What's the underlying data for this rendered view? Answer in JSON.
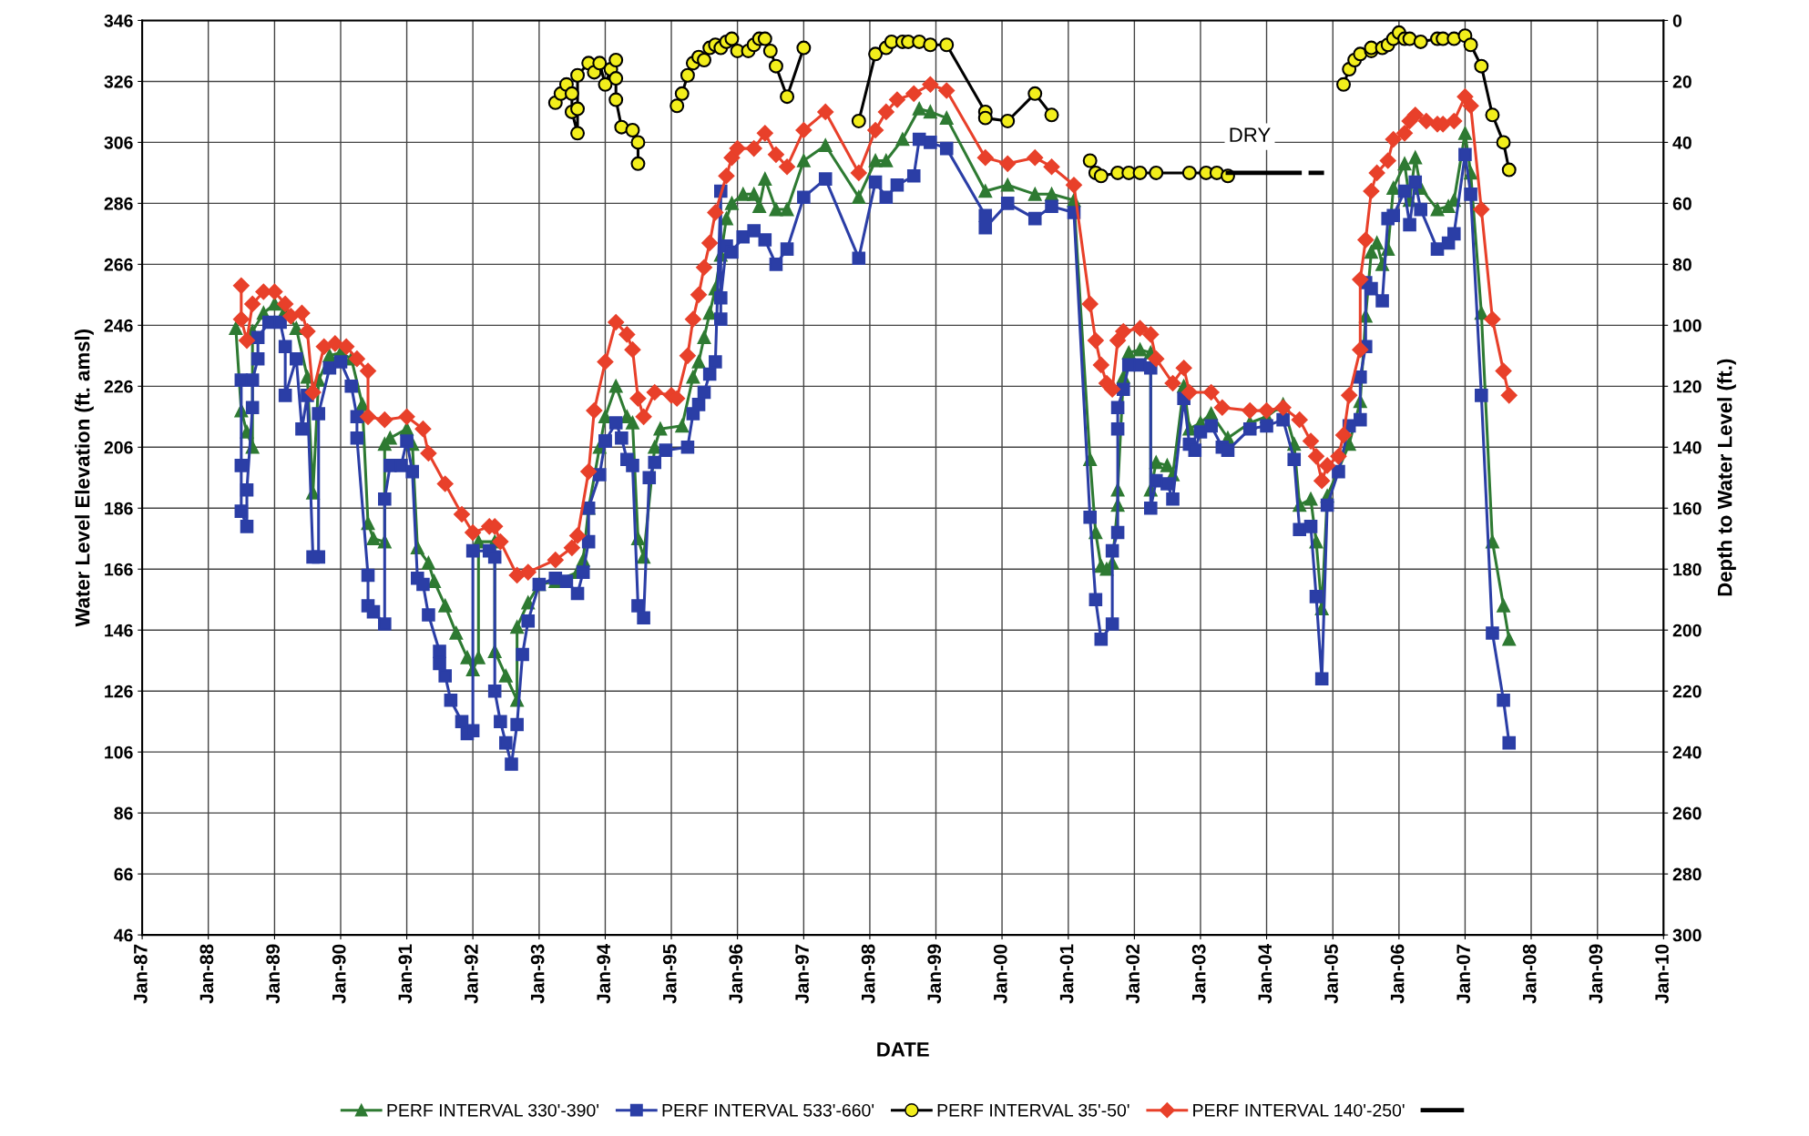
{
  "chart_data": {
    "type": "line",
    "xlabel": "DATE",
    "ylabel": "Water Level Elevation (ft. amsl)",
    "y2label": "Depth to Water Level (ft.)",
    "xlim": [
      "1987-01",
      "2010-01"
    ],
    "xticks": [
      {
        "value": "1987-01",
        "label": "Jan-87"
      },
      {
        "value": "1988-01",
        "label": "Jan-88"
      },
      {
        "value": "1989-01",
        "label": "Jan-89"
      },
      {
        "value": "1990-01",
        "label": "Jan-90"
      },
      {
        "value": "1991-01",
        "label": "Jan-91"
      },
      {
        "value": "1992-01",
        "label": "Jan-92"
      },
      {
        "value": "1993-01",
        "label": "Jan-93"
      },
      {
        "value": "1994-01",
        "label": "Jan-94"
      },
      {
        "value": "1995-01",
        "label": "Jan-95"
      },
      {
        "value": "1996-01",
        "label": "Jan-96"
      },
      {
        "value": "1997-01",
        "label": "Jan-97"
      },
      {
        "value": "1998-01",
        "label": "Jan-98"
      },
      {
        "value": "1999-01",
        "label": "Jan-99"
      },
      {
        "value": "2000-01",
        "label": "Jan-00"
      },
      {
        "value": "2001-01",
        "label": "Jan-01"
      },
      {
        "value": "2002-01",
        "label": "Jan-02"
      },
      {
        "value": "2003-01",
        "label": "Jan-03"
      },
      {
        "value": "2004-01",
        "label": "Jan-04"
      },
      {
        "value": "2005-01",
        "label": "Jan-05"
      },
      {
        "value": "2006-01",
        "label": "Jan-06"
      },
      {
        "value": "2007-01",
        "label": "Jan-07"
      },
      {
        "value": "2008-01",
        "label": "Jan-08"
      },
      {
        "value": "2009-01",
        "label": "Jan-09"
      },
      {
        "value": "2010-01",
        "label": "Jan-10"
      }
    ],
    "ylim": [
      46,
      346
    ],
    "yticks": [
      46,
      66,
      86,
      106,
      126,
      146,
      166,
      186,
      206,
      226,
      246,
      266,
      286,
      306,
      326,
      346
    ],
    "y2lim": [
      300,
      0
    ],
    "y2ticks": [
      0,
      20,
      40,
      60,
      80,
      100,
      120,
      140,
      160,
      180,
      200,
      220,
      240,
      260,
      280,
      300
    ],
    "grid": true,
    "legend": "bottom",
    "line_style": "solid",
    "annotations": [
      "DRY"
    ],
    "series": [
      {
        "name": "PERF INTERVAL 330'-390'",
        "color": "#2e7a32",
        "marker": "triangle",
        "x": [
          "1988-06",
          "1988-07",
          "1988-08",
          "1988-09",
          "1988-09",
          "1988-11",
          "1989-01",
          "1989-03",
          "1989-05",
          "1989-07",
          "1989-08",
          "1989-09",
          "1989-11",
          "1990-01",
          "1990-03",
          "1990-05",
          "1990-06",
          "1990-07",
          "1990-09",
          "1990-09",
          "1990-10",
          "1991-01",
          "1991-02",
          "1991-03",
          "1991-05",
          "1991-06",
          "1991-08",
          "1991-10",
          "1991-12",
          "1992-01",
          "1992-02",
          "1992-02",
          "1992-05",
          "1992-05",
          "1992-07",
          "1992-09",
          "1992-09",
          "1992-11",
          "1993-01",
          "1993-04",
          "1993-08",
          "1993-09",
          "1993-10",
          "1993-12",
          "1994-01",
          "1994-03",
          "1994-05",
          "1994-06",
          "1994-07",
          "1994-08",
          "1994-10",
          "1994-11",
          "1995-03",
          "1995-05",
          "1995-06",
          "1995-07",
          "1995-08",
          "1995-09",
          "1995-10",
          "1995-11",
          "1995-12",
          "1996-02",
          "1996-04",
          "1996-05",
          "1996-06",
          "1996-08",
          "1996-10",
          "1997-01",
          "1997-05",
          "1997-11",
          "1998-02",
          "1998-04",
          "1998-07",
          "1998-10",
          "1998-12",
          "1999-03",
          "1999-10",
          "2000-02",
          "2000-07",
          "2000-10",
          "2001-02",
          "2001-05",
          "2001-06",
          "2001-07",
          "2001-08",
          "2001-09",
          "2001-10",
          "2001-10",
          "2001-11",
          "2001-12",
          "2002-02",
          "2002-04",
          "2002-04",
          "2002-05",
          "2002-07",
          "2002-08",
          "2002-10",
          "2002-11",
          "2003-01",
          "2003-03",
          "2003-06",
          "2003-10",
          "2004-01",
          "2004-04",
          "2004-06",
          "2004-07",
          "2004-09",
          "2004-10",
          "2004-11",
          "2004-12",
          "2005-04",
          "2005-06",
          "2005-07",
          "2005-08",
          "2005-09",
          "2005-10",
          "2005-11",
          "2005-12",
          "2006-02",
          "2006-03",
          "2006-04",
          "2006-05",
          "2006-08",
          "2006-10",
          "2006-11",
          "2007-01",
          "2007-02",
          "2007-04",
          "2007-06",
          "2007-08",
          "2007-09"
        ],
        "values": [
          245,
          218,
          211,
          206,
          244,
          250,
          253,
          251,
          245,
          229,
          191,
          228,
          236,
          237,
          235,
          220,
          181,
          176,
          175,
          207,
          209,
          212,
          207,
          173,
          168,
          162,
          154,
          145,
          137,
          133,
          137,
          175,
          175,
          139,
          131,
          123,
          147,
          155,
          161,
          162,
          165,
          169,
          186,
          206,
          216,
          226,
          216,
          214,
          176,
          170,
          206,
          212,
          213,
          229,
          234,
          242,
          250,
          258,
          269,
          281,
          286,
          289,
          289,
          285,
          294,
          284,
          284,
          300,
          305,
          288,
          300,
          300,
          307,
          317,
          316,
          314,
          290,
          292,
          289,
          289,
          287,
          202,
          178,
          167,
          166,
          168,
          187,
          192,
          229,
          237,
          238,
          237,
          192,
          201,
          200,
          197,
          226,
          212,
          214,
          217,
          209,
          214,
          216,
          220,
          207,
          187,
          189,
          175,
          153,
          190,
          207,
          221,
          249,
          270,
          273,
          266,
          271,
          291,
          299,
          287,
          301,
          291,
          284,
          285,
          287,
          309,
          296,
          250,
          175,
          154,
          143
        ]
      },
      {
        "name": "PERF INTERVAL 533'-660'",
        "color": "#2b3ea6",
        "marker": "square",
        "x": [
          "1988-07",
          "1988-07",
          "1988-07",
          "1988-08",
          "1988-08",
          "1988-09",
          "1988-09",
          "1988-10",
          "1988-10",
          "1988-12",
          "1989-02",
          "1989-03",
          "1989-03",
          "1989-05",
          "1989-06",
          "1989-07",
          "1989-08",
          "1989-09",
          "1989-09",
          "1989-11",
          "1990-01",
          "1990-03",
          "1990-04",
          "1990-04",
          "1990-06",
          "1990-06",
          "1990-07",
          "1990-09",
          "1990-09",
          "1990-10",
          "1990-12",
          "1991-01",
          "1991-02",
          "1991-03",
          "1991-04",
          "1991-05",
          "1991-07",
          "1991-07",
          "1991-08",
          "1991-09",
          "1991-11",
          "1991-12",
          "1992-01",
          "1992-01",
          "1992-04",
          "1992-05",
          "1992-05",
          "1992-06",
          "1992-07",
          "1992-08",
          "1992-09",
          "1992-10",
          "1992-11",
          "1993-01",
          "1993-04",
          "1993-06",
          "1993-08",
          "1993-09",
          "1993-10",
          "1993-10",
          "1993-12",
          "1994-01",
          "1994-01",
          "1994-03",
          "1994-04",
          "1994-05",
          "1994-06",
          "1994-07",
          "1994-08",
          "1994-09",
          "1994-10",
          "1994-12",
          "1995-04",
          "1995-05",
          "1995-06",
          "1995-07",
          "1995-08",
          "1995-09",
          "1995-10",
          "1995-10",
          "1995-10",
          "1995-11",
          "1995-12",
          "1996-02",
          "1996-04",
          "1996-06",
          "1996-08",
          "1996-10",
          "1997-01",
          "1997-05",
          "1997-11",
          "1998-02",
          "1998-04",
          "1998-06",
          "1998-09",
          "1998-10",
          "1998-12",
          "1999-03",
          "1999-10",
          "1999-10",
          "2000-02",
          "2000-07",
          "2000-10",
          "2001-02",
          "2001-05",
          "2001-06",
          "2001-07",
          "2001-09",
          "2001-09",
          "2001-10",
          "2001-10",
          "2001-10",
          "2001-11",
          "2001-12",
          "2002-02",
          "2002-04",
          "2002-04",
          "2002-05",
          "2002-07",
          "2002-08",
          "2002-10",
          "2002-11",
          "2002-12",
          "2003-01",
          "2003-03",
          "2003-05",
          "2003-06",
          "2003-10",
          "2004-01",
          "2004-04",
          "2004-06",
          "2004-07",
          "2004-09",
          "2004-10",
          "2004-11",
          "2004-12",
          "2005-02",
          "2005-04",
          "2005-06",
          "2005-06",
          "2005-07",
          "2005-07",
          "2005-08",
          "2005-10",
          "2005-11",
          "2005-12",
          "2006-02",
          "2006-03",
          "2006-04",
          "2006-05",
          "2006-08",
          "2006-10",
          "2006-11",
          "2007-01",
          "2007-02",
          "2007-04",
          "2007-06",
          "2007-08",
          "2007-09"
        ],
        "values": [
          228,
          200,
          185,
          180,
          192,
          219,
          228,
          235,
          242,
          247,
          247,
          239,
          223,
          235,
          212,
          223,
          170,
          170,
          217,
          232,
          234,
          226,
          216,
          209,
          164,
          154,
          152,
          148,
          189,
          200,
          200,
          208,
          198,
          163,
          161,
          151,
          139,
          135,
          131,
          123,
          116,
          112,
          113,
          172,
          172,
          170,
          126,
          116,
          109,
          102,
          115,
          138,
          149,
          161,
          163,
          162,
          158,
          165,
          175,
          186,
          197,
          208,
          208,
          214,
          209,
          202,
          200,
          154,
          150,
          196,
          201,
          205,
          206,
          217,
          220,
          224,
          230,
          234,
          290,
          248,
          255,
          272,
          270,
          275,
          277,
          274,
          266,
          271,
          288,
          294,
          268,
          293,
          288,
          292,
          295,
          307,
          306,
          304,
          282,
          278,
          286,
          281,
          285,
          283,
          183,
          156,
          143,
          148,
          172,
          178,
          212,
          219,
          225,
          233,
          233,
          232,
          186,
          195,
          194,
          189,
          222,
          207,
          205,
          211,
          213,
          206,
          205,
          212,
          213,
          215,
          202,
          179,
          180,
          157,
          130,
          187,
          198,
          213,
          215,
          229,
          239,
          260,
          258,
          254,
          281,
          282,
          290,
          279,
          293,
          284,
          271,
          273,
          276,
          302,
          289,
          223,
          145,
          123,
          109
        ]
      },
      {
        "name": "PERF INTERVAL 35'-50'",
        "color": "#f2ee1c",
        "marker": "circle",
        "axis": "y2",
        "x": [
          "1993-04",
          "1993-05",
          "1993-06",
          "1993-07",
          "1993-07",
          "1993-08",
          "1993-08",
          "1993-08",
          "1993-10",
          "1993-11",
          "1993-12",
          "1994-01",
          "1994-02",
          "1994-03",
          "1994-03",
          "1994-03",
          "1994-04",
          "1994-06",
          "1994-07",
          "1994-07",
          "1994-11",
          "1995-02",
          "1995-03",
          "1995-04",
          "1995-05",
          "1995-06",
          "1995-07",
          "1995-08",
          "1995-09",
          "1995-10",
          "1995-11",
          "1995-12",
          "1996-01",
          "1996-03",
          "1996-04",
          "1996-05",
          "1996-06",
          "1996-07",
          "1996-08",
          "1996-10",
          "1997-01",
          "1997-06",
          "1997-11",
          "1998-02",
          "1998-04",
          "1998-05",
          "1998-07",
          "1998-08",
          "1998-10",
          "1998-12",
          "1999-03",
          "1999-10",
          "1999-10",
          "2000-02",
          "2000-07",
          "2000-10",
          "2001-01",
          "2001-05",
          "2001-06",
          "2001-07",
          "2001-10",
          "2001-12",
          "2002-02",
          "2002-05",
          "2002-11",
          "2003-02",
          "2003-04",
          "2003-06",
          "2004-05",
          "2005-03",
          "2005-04",
          "2005-05",
          "2005-06",
          "2005-08",
          "2005-08",
          "2005-10",
          "2005-11",
          "2005-12",
          "2006-01",
          "2006-02",
          "2006-03",
          "2006-05",
          "2006-08",
          "2006-09",
          "2006-11",
          "2007-01",
          "2007-02",
          "2007-04",
          "2007-06",
          "2007-08",
          "2007-09"
        ],
        "values": [
          27,
          24,
          21,
          24,
          30,
          37,
          29,
          18,
          14,
          17,
          14,
          21,
          16,
          13,
          19,
          26,
          35,
          36,
          40,
          47,
          null,
          28,
          24,
          18,
          14,
          12,
          13,
          9,
          8,
          9,
          7,
          6,
          10,
          10,
          8,
          6,
          6,
          10,
          15,
          25,
          9,
          null,
          33,
          11,
          9,
          7,
          7,
          7,
          7,
          8,
          8,
          30,
          32,
          33,
          24,
          31,
          null,
          46,
          50,
          51,
          50,
          50,
          50,
          50,
          50,
          50,
          50,
          51,
          null,
          21,
          16,
          13,
          11,
          10,
          9,
          9,
          8,
          6,
          4,
          6,
          6,
          7,
          6,
          6,
          6,
          5,
          8,
          15,
          31,
          40,
          49
        ]
      },
      {
        "name": "PERF INTERVAL 140'-250'",
        "color": "#e8402a",
        "marker": "diamond",
        "x": [
          "1988-07",
          "1988-07",
          "1988-08",
          "1988-09",
          "1988-11",
          "1989-01",
          "1989-03",
          "1989-04",
          "1989-06",
          "1989-07",
          "1989-08",
          "1989-10",
          "1989-12",
          "1990-02",
          "1990-04",
          "1990-06",
          "1990-06",
          "1990-09",
          "1991-01",
          "1991-04",
          "1991-05",
          "1991-08",
          "1991-11",
          "1992-01",
          "1992-04",
          "1992-05",
          "1992-06",
          "1992-09",
          "1992-11",
          "1993-04",
          "1993-07",
          "1993-08",
          "1993-10",
          "1993-11",
          "1994-01",
          "1994-03",
          "1994-05",
          "1994-06",
          "1994-07",
          "1994-08",
          "1994-10",
          "1995-01",
          "1995-02",
          "1995-04",
          "1995-05",
          "1995-06",
          "1995-07",
          "1995-08",
          "1995-09",
          "1995-11",
          "1995-12",
          "1996-01",
          "1996-04",
          "1996-06",
          "1996-08",
          "1996-10",
          "1997-01",
          "1997-05",
          "1997-11",
          "1998-02",
          "1998-04",
          "1998-06",
          "1998-09",
          "1998-12",
          "1999-03",
          "1999-10",
          "2000-02",
          "2000-07",
          "2000-10",
          "2001-02",
          "2001-05",
          "2001-06",
          "2001-07",
          "2001-08",
          "2001-09",
          "2001-10",
          "2001-11",
          "2002-02",
          "2002-04",
          "2002-05",
          "2002-08",
          "2002-10",
          "2002-11",
          "2003-03",
          "2003-05",
          "2003-10",
          "2004-01",
          "2004-04",
          "2004-07",
          "2004-09",
          "2004-10",
          "2004-11",
          "2004-12",
          "2005-02",
          "2005-03",
          "2005-04",
          "2005-06",
          "2005-06",
          "2005-07",
          "2005-08",
          "2005-09",
          "2005-11",
          "2005-12",
          "2006-02",
          "2006-03",
          "2006-04",
          "2006-06",
          "2006-08",
          "2006-09",
          "2006-11",
          "2007-01",
          "2007-02",
          "2007-04",
          "2007-06",
          "2007-08",
          "2007-09"
        ],
        "values": [
          259,
          248,
          241,
          253,
          257,
          257,
          253,
          249,
          250,
          244,
          224,
          239,
          240,
          239,
          235,
          231,
          216,
          215,
          216,
          212,
          204,
          194,
          184,
          178,
          180,
          180,
          175,
          164,
          165,
          169,
          173,
          177,
          198,
          218,
          234,
          247,
          243,
          238,
          222,
          216,
          224,
          223,
          222,
          236,
          248,
          256,
          265,
          273,
          283,
          295,
          301,
          304,
          304,
          309,
          302,
          298,
          310,
          316,
          296,
          310,
          316,
          320,
          322,
          325,
          323,
          301,
          299,
          301,
          298,
          292,
          253,
          241,
          233,
          227,
          225,
          241,
          244,
          245,
          243,
          235,
          227,
          232,
          224,
          224,
          219,
          218,
          218,
          219,
          215,
          208,
          203,
          195,
          200,
          203,
          210,
          223,
          238,
          261,
          274,
          290,
          296,
          300,
          307,
          309,
          313,
          315,
          313,
          312,
          312,
          313,
          321,
          318,
          284,
          248,
          231,
          223
        ]
      },
      {
        "color": "#000000",
        "marker": "none",
        "axis": "y2",
        "x": [
          "2003-06",
          "2004-07",
          "2004-08",
          "2004-09",
          "2004-11"
        ],
        "values": [
          50,
          50,
          null,
          50,
          50
        ]
      }
    ]
  }
}
